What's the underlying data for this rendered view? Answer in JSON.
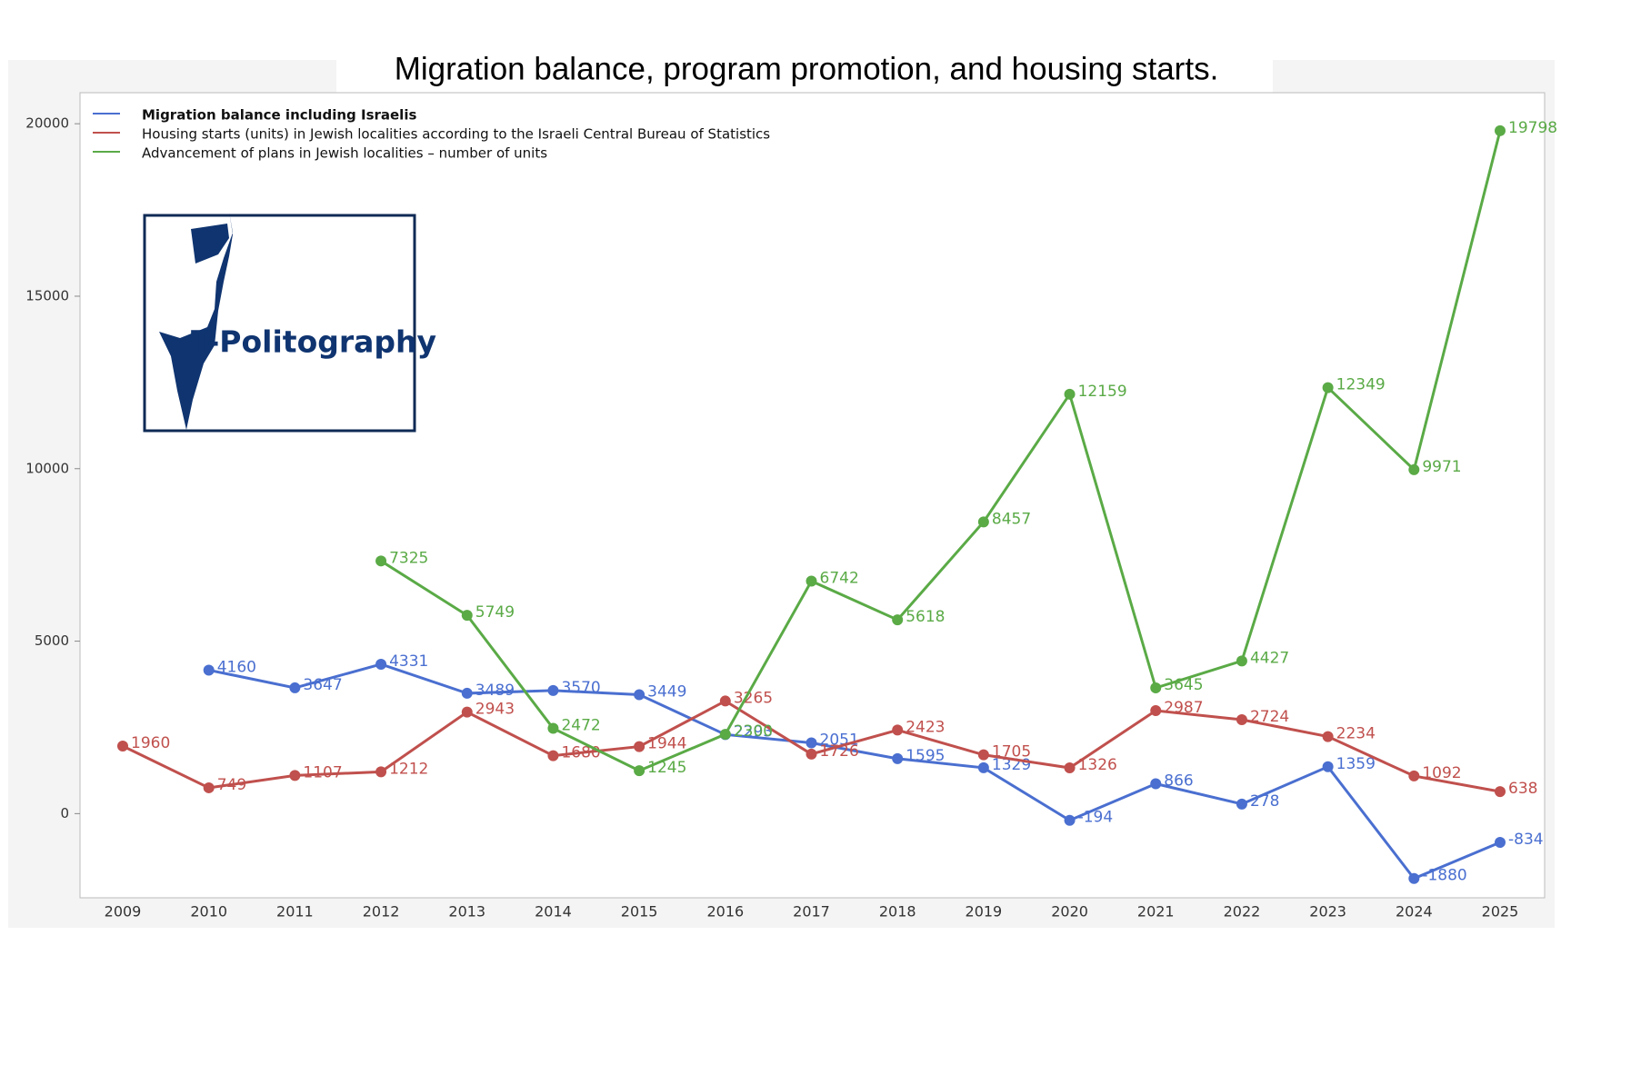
{
  "chart_data": {
    "type": "line",
    "title": "Migration balance, program promotion, and housing starts.",
    "logo_text": "T-Politography",
    "categories": [
      "2009",
      "2010",
      "2011",
      "2012",
      "2013",
      "2014",
      "2015",
      "2016",
      "2017",
      "2018",
      "2019",
      "2020",
      "2021",
      "2022",
      "2023",
      "2024",
      "2025"
    ],
    "series": [
      {
        "name": "Migration balance including Israelis",
        "color": "#4a6fd0",
        "values": [
          null,
          4160,
          3647,
          4331,
          3489,
          3570,
          3449,
          2293,
          2051,
          1595,
          1329,
          -194,
          866,
          278,
          1359,
          -1880,
          -834
        ]
      },
      {
        "name": "Housing starts (units) in Jewish localities according to the Israeli Central Bureau of Statistics",
        "color": "#c0504d",
        "values": [
          1960,
          749,
          1107,
          1212,
          2943,
          1680,
          1944,
          3265,
          1726,
          2423,
          1705,
          1326,
          2987,
          2724,
          2234,
          1092,
          638
        ]
      },
      {
        "name": "Advancement of plans in Jewish localities – number of units",
        "color": "#5aaa46",
        "values": [
          null,
          null,
          null,
          7325,
          5749,
          2472,
          1245,
          2300,
          6742,
          5618,
          8457,
          12159,
          3645,
          4427,
          12349,
          9971,
          19798
        ]
      }
    ],
    "ylim": [
      -2440,
      20900
    ],
    "yticks": [
      0,
      5000,
      10000,
      15000,
      20000
    ]
  }
}
